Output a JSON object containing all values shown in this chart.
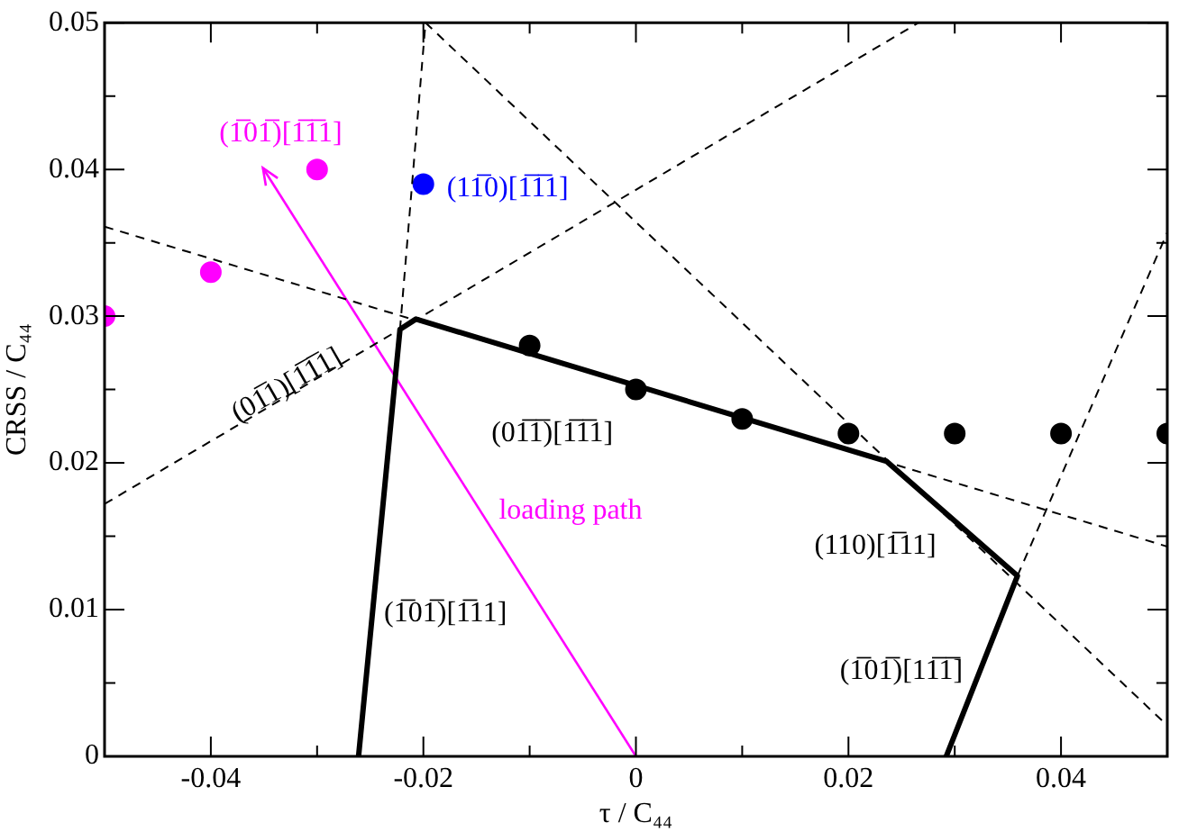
{
  "chart_data": {
    "type": "scatter",
    "xlabel": "τ / C₄₄",
    "ylabel": "CRSS / C₄₄",
    "xlim": [
      -0.05,
      0.05
    ],
    "ylim": [
      0,
      0.05
    ],
    "xticks": [
      {
        "value": -0.04,
        "label": "-0.04"
      },
      {
        "value": -0.03,
        "label": null
      },
      {
        "value": -0.02,
        "label": "-0.02"
      },
      {
        "value": -0.01,
        "label": null
      },
      {
        "value": 0,
        "label": "0"
      },
      {
        "value": 0.01,
        "label": null
      },
      {
        "value": 0.02,
        "label": "0.02"
      },
      {
        "value": 0.03,
        "label": null
      },
      {
        "value": 0.04,
        "label": "0.04"
      }
    ],
    "yticks": [
      0,
      {
        "value": 0.005,
        "label": null
      },
      0.01,
      {
        "value": 0.015,
        "label": null
      },
      0.02,
      {
        "value": 0.025,
        "label": null
      },
      0.03,
      {
        "value": 0.035,
        "label": null
      },
      0.04,
      {
        "value": 0.045,
        "label": null
      },
      0.05
    ],
    "grid": false,
    "legend": false,
    "series": [
      {
        "type": "line",
        "color": "#000000",
        "line_style": "solid",
        "marker": "none",
        "x": [
          -0.0261,
          -0.0222,
          -0.0207,
          0.0236,
          0.0359,
          0.0292
        ],
        "values": [
          0,
          0.0291,
          0.0298,
          0.0201,
          0.0123,
          0
        ]
      },
      {
        "type": "line",
        "color": "#000000",
        "line_style": "dashed",
        "marker": "none",
        "x": [
          -0.05,
          0.0266
        ],
        "values": [
          0.0172,
          0.05
        ]
      },
      {
        "type": "line",
        "color": "#000000",
        "line_style": "dashed",
        "marker": "none",
        "x": [
          -0.05,
          0.05
        ],
        "values": [
          0.0361,
          0.0143
        ]
      },
      {
        "type": "line",
        "color": "#000000",
        "line_style": "dashed",
        "marker": "none",
        "x": [
          -0.0222,
          -0.0198
        ],
        "values": [
          0.0291,
          0.05
        ]
      },
      {
        "type": "line",
        "color": "#000000",
        "line_style": "dashed",
        "marker": "none",
        "x": [
          -0.0198,
          0.05
        ],
        "values": [
          0.05,
          0.0021
        ]
      },
      {
        "type": "line",
        "color": "#000000",
        "line_style": "dashed",
        "marker": "none",
        "x": [
          0.0359,
          0.05
        ],
        "values": [
          0.0123,
          0.0357
        ]
      },
      {
        "type": "line",
        "color": "#ff00ff",
        "line_style": "solid",
        "marker": "none",
        "x": [
          0,
          -0.0351
        ],
        "values": [
          0,
          0.0401
        ]
      },
      {
        "type": "scatter",
        "color": "#000000",
        "marker": "circle",
        "x": [
          -0.01,
          0,
          0.01,
          0.02,
          0.03,
          0.04,
          0.05
        ],
        "values": [
          0.028,
          0.025,
          0.023,
          0.022,
          0.022,
          0.022,
          0.022
        ]
      },
      {
        "type": "scatter",
        "color": "#ff00ff",
        "marker": "circle",
        "x": [
          -0.05,
          -0.04,
          -0.03
        ],
        "values": [
          0.03,
          0.033,
          0.04
        ]
      },
      {
        "type": "scatter",
        "color": "#0000ff",
        "marker": "circle",
        "x": [
          -0.02
        ],
        "values": [
          0.039
        ]
      }
    ],
    "annotations": [
      "(1̅01̅)[1̅1̅1]",
      "(11̅0)[1̅1̅1]",
      "(01̅1)[1̅1̅1]",
      "(01̅1̅)[1̅1̅1]",
      "loading path",
      "(1̅01̅)[1̅11]",
      "(110)[1̅11]",
      "(1̅01̅)[11̅1̅]"
    ]
  }
}
